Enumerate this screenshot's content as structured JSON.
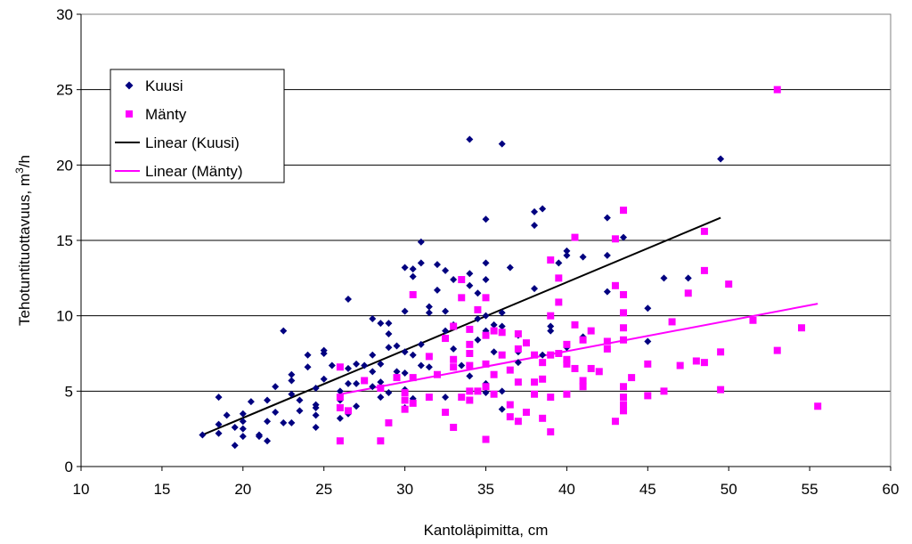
{
  "chart_data": {
    "type": "scatter",
    "xlabel": "Kantoläpimitta, cm",
    "ylabel_main": "Tehotuntituottavuus, m",
    "ylabel_sup": "3",
    "ylabel_tail": "/h",
    "xlim": [
      10,
      60
    ],
    "ylim": [
      0,
      30
    ],
    "xticks": [
      "10",
      "15",
      "20",
      "25",
      "30",
      "35",
      "40",
      "45",
      "50",
      "55",
      "60"
    ],
    "yticks": [
      "0",
      "5",
      "10",
      "15",
      "20",
      "25",
      "30"
    ],
    "grid": "horizontal",
    "legend_position": "top-left",
    "legend": [
      "Kuusi",
      "Mänty",
      "Linear (Kuusi)",
      "Linear (Mänty)"
    ],
    "series": [
      {
        "name": "Kuusi",
        "marker": "diamond",
        "color": "#000080",
        "points": [
          [
            17.5,
            2.1
          ],
          [
            18.5,
            4.6
          ],
          [
            18.5,
            2.8
          ],
          [
            18.5,
            2.2
          ],
          [
            19,
            3.4
          ],
          [
            19.5,
            1.4
          ],
          [
            19.5,
            2.6
          ],
          [
            20,
            2.0
          ],
          [
            20,
            2.5
          ],
          [
            20,
            3.0
          ],
          [
            20,
            3.5
          ],
          [
            20.5,
            4.3
          ],
          [
            21,
            2.1
          ],
          [
            21,
            2.0
          ],
          [
            21.5,
            1.7
          ],
          [
            21.5,
            3.0
          ],
          [
            21.5,
            4.4
          ],
          [
            22,
            3.6
          ],
          [
            22,
            5.3
          ],
          [
            22.5,
            9.0
          ],
          [
            22.5,
            2.9
          ],
          [
            23,
            2.9
          ],
          [
            23,
            5.7
          ],
          [
            23,
            6.1
          ],
          [
            23,
            4.8
          ],
          [
            23.5,
            3.7
          ],
          [
            23.5,
            4.4
          ],
          [
            24,
            6.6
          ],
          [
            24,
            7.4
          ],
          [
            24.5,
            2.6
          ],
          [
            24.5,
            3.4
          ],
          [
            24.5,
            3.9
          ],
          [
            24.5,
            4.1
          ],
          [
            24.5,
            5.2
          ],
          [
            25,
            5.8
          ],
          [
            25,
            7.5
          ],
          [
            25,
            7.7
          ],
          [
            25.5,
            6.7
          ],
          [
            26,
            3.2
          ],
          [
            26,
            4.4
          ],
          [
            26,
            5.0
          ],
          [
            26.5,
            3.5
          ],
          [
            26.5,
            5.5
          ],
          [
            26.5,
            6.5
          ],
          [
            26.5,
            11.1
          ],
          [
            27,
            4.0
          ],
          [
            27,
            5.5
          ],
          [
            27,
            6.8
          ],
          [
            27.5,
            6.7
          ],
          [
            28,
            5.3
          ],
          [
            28,
            6.3
          ],
          [
            28,
            7.4
          ],
          [
            28,
            9.8
          ],
          [
            28.5,
            4.6
          ],
          [
            28.5,
            5.6
          ],
          [
            28.5,
            6.8
          ],
          [
            28.5,
            9.5
          ],
          [
            29,
            4.9
          ],
          [
            29,
            7.9
          ],
          [
            29,
            8.8
          ],
          [
            29,
            9.5
          ],
          [
            29.5,
            6.3
          ],
          [
            29.5,
            8.0
          ],
          [
            30,
            3.9
          ],
          [
            30,
            5.1
          ],
          [
            30,
            6.2
          ],
          [
            30,
            7.6
          ],
          [
            30,
            10.3
          ],
          [
            30,
            13.2
          ],
          [
            30.5,
            4.5
          ],
          [
            30.5,
            7.4
          ],
          [
            30.5,
            12.6
          ],
          [
            30.5,
            13.1
          ],
          [
            31,
            6.7
          ],
          [
            31,
            8.1
          ],
          [
            31,
            14.9
          ],
          [
            31,
            13.5
          ],
          [
            31.5,
            6.6
          ],
          [
            31.5,
            10.2
          ],
          [
            31.5,
            10.6
          ],
          [
            32,
            11.7
          ],
          [
            32,
            13.4
          ],
          [
            32.5,
            4.6
          ],
          [
            32.5,
            9.0
          ],
          [
            32.5,
            10.3
          ],
          [
            32.5,
            13.0
          ],
          [
            33,
            7.8
          ],
          [
            33,
            9.4
          ],
          [
            33,
            12.4
          ],
          [
            33.5,
            6.7
          ],
          [
            34,
            21.7
          ],
          [
            34,
            12.0
          ],
          [
            34,
            12.8
          ],
          [
            34,
            6.0
          ],
          [
            34.5,
            8.4
          ],
          [
            34.5,
            9.8
          ],
          [
            34.5,
            11.5
          ],
          [
            35,
            10.0
          ],
          [
            35,
            9.0
          ],
          [
            35,
            13.5
          ],
          [
            35,
            16.4
          ],
          [
            35,
            12.4
          ],
          [
            35,
            5.5
          ],
          [
            35,
            4.9
          ],
          [
            35.5,
            7.6
          ],
          [
            35.5,
            9.4
          ],
          [
            36,
            21.4
          ],
          [
            36,
            10.2
          ],
          [
            36,
            5.0
          ],
          [
            36,
            3.8
          ],
          [
            36,
            9.3
          ],
          [
            36.5,
            13.2
          ],
          [
            37,
            6.9
          ],
          [
            37,
            8.7
          ],
          [
            37,
            7.6
          ],
          [
            38,
            11.8
          ],
          [
            38,
            16.0
          ],
          [
            38,
            16.9
          ],
          [
            38.5,
            17.1
          ],
          [
            38.5,
            7.4
          ],
          [
            39,
            9.3
          ],
          [
            39,
            9.0
          ],
          [
            39.5,
            13.5
          ],
          [
            40,
            14.0
          ],
          [
            40,
            14.3
          ],
          [
            40,
            7.9
          ],
          [
            41,
            13.9
          ],
          [
            41,
            8.6
          ],
          [
            42.5,
            16.5
          ],
          [
            42.5,
            14.0
          ],
          [
            42.5,
            11.6
          ],
          [
            43.5,
            15.2
          ],
          [
            45,
            10.5
          ],
          [
            45,
            8.3
          ],
          [
            46,
            12.5
          ],
          [
            47.5,
            12.5
          ],
          [
            49.5,
            20.4
          ]
        ]
      },
      {
        "name": "Mänty",
        "marker": "square",
        "color": "#ff00ff",
        "points": [
          [
            26,
            1.7
          ],
          [
            26,
            3.9
          ],
          [
            26,
            6.6
          ],
          [
            26,
            4.6
          ],
          [
            26.5,
            3.7
          ],
          [
            27.5,
            5.7
          ],
          [
            28.5,
            1.7
          ],
          [
            28.5,
            5.2
          ],
          [
            29,
            2.9
          ],
          [
            29.5,
            5.9
          ],
          [
            30,
            4.9
          ],
          [
            30,
            3.8
          ],
          [
            30,
            4.4
          ],
          [
            30.5,
            4.2
          ],
          [
            30.5,
            5.9
          ],
          [
            30.5,
            11.4
          ],
          [
            31.5,
            7.3
          ],
          [
            31.5,
            4.6
          ],
          [
            32,
            6.1
          ],
          [
            32.5,
            3.6
          ],
          [
            32.5,
            8.5
          ],
          [
            33,
            2.6
          ],
          [
            33,
            6.6
          ],
          [
            33,
            7.1
          ],
          [
            33,
            9.3
          ],
          [
            33.5,
            4.6
          ],
          [
            33.5,
            12.4
          ],
          [
            33.5,
            11.2
          ],
          [
            34,
            5.0
          ],
          [
            34,
            6.7
          ],
          [
            34,
            7.5
          ],
          [
            34,
            9.1
          ],
          [
            34,
            8.1
          ],
          [
            34,
            4.4
          ],
          [
            34.5,
            10.4
          ],
          [
            34.5,
            5.0
          ],
          [
            35,
            5.3
          ],
          [
            35,
            6.8
          ],
          [
            35,
            8.7
          ],
          [
            35,
            1.8
          ],
          [
            35,
            11.2
          ],
          [
            35.5,
            4.8
          ],
          [
            35.5,
            9.0
          ],
          [
            35.5,
            6.1
          ],
          [
            36,
            7.4
          ],
          [
            36,
            8.9
          ],
          [
            36.5,
            4.1
          ],
          [
            36.5,
            6.4
          ],
          [
            36.5,
            3.3
          ],
          [
            37,
            3.0
          ],
          [
            37,
            5.6
          ],
          [
            37,
            7.8
          ],
          [
            37,
            8.8
          ],
          [
            37.5,
            3.6
          ],
          [
            37.5,
            8.2
          ],
          [
            38,
            5.6
          ],
          [
            38,
            7.4
          ],
          [
            38,
            4.8
          ],
          [
            38.5,
            6.9
          ],
          [
            38.5,
            5.8
          ],
          [
            38.5,
            3.2
          ],
          [
            39,
            2.3
          ],
          [
            39,
            4.6
          ],
          [
            39,
            7.4
          ],
          [
            39,
            10.0
          ],
          [
            39,
            13.7
          ],
          [
            39.5,
            12.5
          ],
          [
            39.5,
            7.5
          ],
          [
            39.5,
            10.9
          ],
          [
            40,
            7.1
          ],
          [
            40,
            8.1
          ],
          [
            40,
            6.8
          ],
          [
            40,
            4.8
          ],
          [
            40.5,
            15.2
          ],
          [
            40.5,
            9.4
          ],
          [
            40.5,
            6.5
          ],
          [
            41,
            5.3
          ],
          [
            41,
            8.4
          ],
          [
            41,
            5.7
          ],
          [
            41.5,
            6.5
          ],
          [
            41.5,
            9.0
          ],
          [
            42,
            6.3
          ],
          [
            42.5,
            7.8
          ],
          [
            42.5,
            8.3
          ],
          [
            43,
            3.0
          ],
          [
            43,
            12.0
          ],
          [
            43,
            15.1
          ],
          [
            43.5,
            17.0
          ],
          [
            43.5,
            11.4
          ],
          [
            43.5,
            10.2
          ],
          [
            43.5,
            9.2
          ],
          [
            43.5,
            8.4
          ],
          [
            43.5,
            5.3
          ],
          [
            43.5,
            4.6
          ],
          [
            43.5,
            4.1
          ],
          [
            43.5,
            3.7
          ],
          [
            44,
            5.9
          ],
          [
            45,
            6.8
          ],
          [
            45,
            4.7
          ],
          [
            46,
            5.0
          ],
          [
            46.5,
            9.6
          ],
          [
            47,
            6.7
          ],
          [
            47.5,
            11.5
          ],
          [
            48,
            7.0
          ],
          [
            48.5,
            13.0
          ],
          [
            48.5,
            15.6
          ],
          [
            48.5,
            6.9
          ],
          [
            49.5,
            7.6
          ],
          [
            49.5,
            5.1
          ],
          [
            50,
            12.1
          ],
          [
            51.5,
            9.7
          ],
          [
            53,
            25.0
          ],
          [
            53,
            7.7
          ],
          [
            54.5,
            9.2
          ],
          [
            55.5,
            4.0
          ]
        ]
      }
    ],
    "trendlines": [
      {
        "name": "Linear (Kuusi)",
        "color": "#000000",
        "x": [
          17.5,
          49.5
        ],
        "y": [
          2.1,
          16.5
        ]
      },
      {
        "name": "Linear (Mänty)",
        "color": "#ff00ff",
        "x": [
          26,
          55.5
        ],
        "y": [
          4.8,
          10.8
        ]
      }
    ]
  }
}
